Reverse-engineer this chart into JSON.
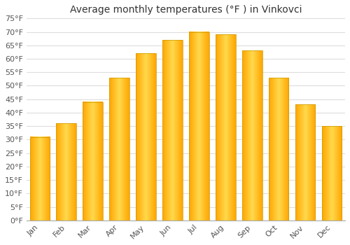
{
  "title": "Average monthly temperatures (°F ) in Vinkovci",
  "months": [
    "Jan",
    "Feb",
    "Mar",
    "Apr",
    "May",
    "Jun",
    "Jul",
    "Aug",
    "Sep",
    "Oct",
    "Nov",
    "Dec"
  ],
  "values": [
    31,
    36,
    44,
    53,
    62,
    67,
    70,
    69,
    63,
    53,
    43,
    35
  ],
  "bar_color_left": "#FFA500",
  "bar_color_mid": "#FFB800",
  "bar_color_right": "#FFA500",
  "bar_edge_color": "#CC8800",
  "ylim": [
    0,
    75
  ],
  "yticks": [
    0,
    5,
    10,
    15,
    20,
    25,
    30,
    35,
    40,
    45,
    50,
    55,
    60,
    65,
    70,
    75
  ],
  "ylabel_suffix": "°F",
  "background_color": "#ffffff",
  "grid_color": "#dddddd",
  "title_fontsize": 10,
  "tick_fontsize": 8,
  "font_color": "#555555"
}
